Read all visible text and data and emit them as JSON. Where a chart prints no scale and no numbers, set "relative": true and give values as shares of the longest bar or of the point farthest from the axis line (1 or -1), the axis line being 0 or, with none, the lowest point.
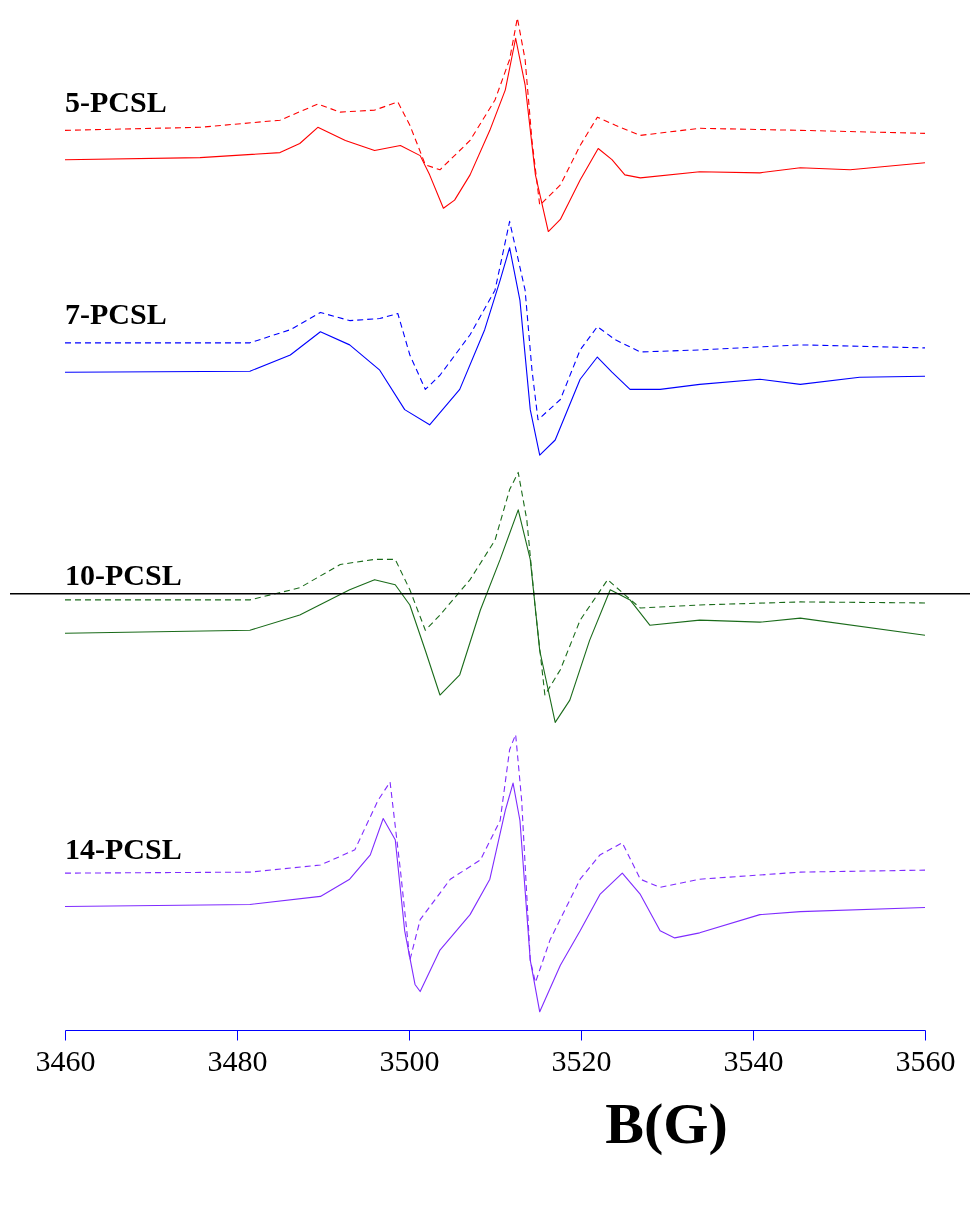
{
  "chart_data": {
    "type": "line",
    "relative": true,
    "xlabel": "B(G)",
    "xlim": [
      3460,
      3560
    ],
    "xticks": [
      3460,
      3480,
      3500,
      3520,
      3540,
      3560
    ],
    "grid": false,
    "marker": "none",
    "ref_lines": [
      {
        "axis": "y",
        "value": 0.431,
        "color": "#000000",
        "line_style": "solid"
      }
    ],
    "series": [
      {
        "name": "5-PCSL",
        "color": "#ff0000",
        "line_style": "solid",
        "x": [
          3460,
          3475.7,
          3485,
          3487.3,
          3489.4,
          3492.6,
          3496,
          3499,
          3501.3,
          3502.4,
          3504,
          3505.3,
          3507.1,
          3509.4,
          3511.2,
          3512.4,
          3513.5,
          3514.7,
          3516.2,
          3517.6,
          3519.9,
          3522,
          3523.6,
          3525.1,
          3526.9,
          3533.8,
          3540.8,
          3545.5,
          3551.3,
          3560
        ],
        "values": [
          0.86,
          0.862,
          0.867,
          0.876,
          0.892,
          0.879,
          0.869,
          0.874,
          0.864,
          0.845,
          0.812,
          0.82,
          0.845,
          0.889,
          0.929,
          0.98,
          0.934,
          0.845,
          0.789,
          0.801,
          0.84,
          0.871,
          0.86,
          0.845,
          0.842,
          0.848,
          0.847,
          0.852,
          0.85,
          0.857
        ]
      },
      {
        "color": "#ff0000",
        "line_style": "dashed",
        "x": [
          3460,
          3475.7,
          3485,
          3489.4,
          3492,
          3496,
          3498.7,
          3500.1,
          3501.9,
          3503.6,
          3507.1,
          3510,
          3511.7,
          3512.6,
          3513.5,
          3514.3,
          3515.2,
          3517.6,
          3519.9,
          3521.9,
          3524,
          3526.9,
          3533.8,
          3545.5,
          3560
        ],
        "values": [
          0.889,
          0.892,
          0.899,
          0.915,
          0.907,
          0.909,
          0.917,
          0.894,
          0.855,
          0.85,
          0.879,
          0.919,
          0.959,
          1.0,
          0.959,
          0.879,
          0.815,
          0.835,
          0.874,
          0.902,
          0.894,
          0.884,
          0.891,
          0.889,
          0.886
        ]
      },
      {
        "name": "7-PCSL",
        "color": "#0000ff",
        "line_style": "solid",
        "x": [
          3460,
          3481.5,
          3486.2,
          3489.7,
          3493.1,
          3496.6,
          3499.5,
          3502.4,
          3505.9,
          3508.8,
          3510.6,
          3511.7,
          3512.9,
          3514.1,
          3515.2,
          3517,
          3519.9,
          3521.9,
          3523.6,
          3525.7,
          3529.2,
          3533.8,
          3540.8,
          3545.5,
          3552.4,
          3560
        ],
        "values": [
          0.65,
          0.651,
          0.667,
          0.69,
          0.677,
          0.652,
          0.613,
          0.598,
          0.633,
          0.692,
          0.741,
          0.773,
          0.721,
          0.613,
          0.568,
          0.583,
          0.643,
          0.665,
          0.65,
          0.633,
          0.633,
          0.638,
          0.643,
          0.638,
          0.645,
          0.646
        ]
      },
      {
        "color": "#0000ff",
        "line_style": "dashed",
        "x": [
          3460,
          3481.5,
          3486.2,
          3489.7,
          3493.1,
          3496.6,
          3498.7,
          3500.1,
          3501.9,
          3503.6,
          3507.1,
          3510,
          3511.7,
          3513.5,
          3514.3,
          3515,
          3517.6,
          3519.9,
          3521.9,
          3524,
          3526.9,
          3533.8,
          3545.5,
          3560
        ],
        "values": [
          0.679,
          0.679,
          0.692,
          0.709,
          0.701,
          0.703,
          0.708,
          0.667,
          0.633,
          0.647,
          0.687,
          0.731,
          0.799,
          0.731,
          0.652,
          0.603,
          0.623,
          0.672,
          0.695,
          0.682,
          0.67,
          0.672,
          0.677,
          0.674
        ]
      },
      {
        "name": "10-PCSL",
        "color": "#1a6b1a",
        "line_style": "solid",
        "x": [
          3460,
          3481.5,
          3487.3,
          3493.1,
          3496,
          3498.4,
          3500.1,
          3501.9,
          3503.6,
          3505.9,
          3508.3,
          3510.6,
          3512.7,
          3514.1,
          3515.2,
          3517,
          3518.7,
          3521,
          3523.4,
          3525.7,
          3528,
          3533.8,
          3540.8,
          3545.5,
          3560
        ],
        "values": [
          0.392,
          0.395,
          0.41,
          0.435,
          0.445,
          0.44,
          0.42,
          0.375,
          0.331,
          0.351,
          0.415,
          0.465,
          0.514,
          0.465,
          0.375,
          0.304,
          0.326,
          0.385,
          0.435,
          0.425,
          0.4,
          0.405,
          0.403,
          0.407,
          0.39
        ]
      },
      {
        "color": "#1a6b1a",
        "line_style": "dashed",
        "x": [
          3460,
          3481.5,
          3487.3,
          3492,
          3496,
          3498.4,
          3500.1,
          3501.9,
          3503.6,
          3507.1,
          3510,
          3511.7,
          3512.7,
          3513.7,
          3514.7,
          3515.8,
          3517.6,
          3519.9,
          3523.1,
          3525.1,
          3526.9,
          3533.8,
          3545.5,
          3560
        ],
        "values": [
          0.425,
          0.425,
          0.437,
          0.46,
          0.465,
          0.465,
          0.435,
          0.395,
          0.41,
          0.445,
          0.484,
          0.534,
          0.551,
          0.504,
          0.415,
          0.331,
          0.356,
          0.405,
          0.445,
          0.43,
          0.417,
          0.42,
          0.423,
          0.422
        ]
      },
      {
        "name": "14-PCSL",
        "color": "#7f2bff",
        "line_style": "solid",
        "x": [
          3460,
          3481.5,
          3489.7,
          3493.1,
          3495.5,
          3497,
          3498.4,
          3499.5,
          3500.7,
          3501.3,
          3503.6,
          3507.1,
          3509.4,
          3511.2,
          3512.1,
          3512.9,
          3514.1,
          3515.2,
          3517.6,
          3519.9,
          3522.2,
          3524.8,
          3526.9,
          3529.2,
          3530.9,
          3533.8,
          3540.8,
          3545.5,
          3560
        ],
        "values": [
          0.122,
          0.124,
          0.132,
          0.149,
          0.173,
          0.209,
          0.188,
          0.098,
          0.045,
          0.038,
          0.079,
          0.114,
          0.149,
          0.217,
          0.244,
          0.207,
          0.069,
          0.018,
          0.064,
          0.098,
          0.134,
          0.155,
          0.134,
          0.098,
          0.091,
          0.096,
          0.114,
          0.117,
          0.121
        ]
      },
      {
        "color": "#7f2bff",
        "line_style": "dashed",
        "x": [
          3460,
          3481.5,
          3489.7,
          3493.7,
          3496.4,
          3497.8,
          3499,
          3500.1,
          3501.3,
          3504.8,
          3508.3,
          3510.6,
          3511.7,
          3512.4,
          3513.1,
          3514.1,
          3514.7,
          3516.4,
          3519.9,
          3522.2,
          3524.8,
          3526.9,
          3529.2,
          3533.8,
          3545.5,
          3560
        ],
        "values": [
          0.155,
          0.156,
          0.163,
          0.178,
          0.227,
          0.245,
          0.158,
          0.069,
          0.109,
          0.149,
          0.168,
          0.207,
          0.277,
          0.292,
          0.227,
          0.069,
          0.047,
          0.089,
          0.149,
          0.173,
          0.185,
          0.149,
          0.141,
          0.149,
          0.156,
          0.158
        ]
      }
    ]
  }
}
